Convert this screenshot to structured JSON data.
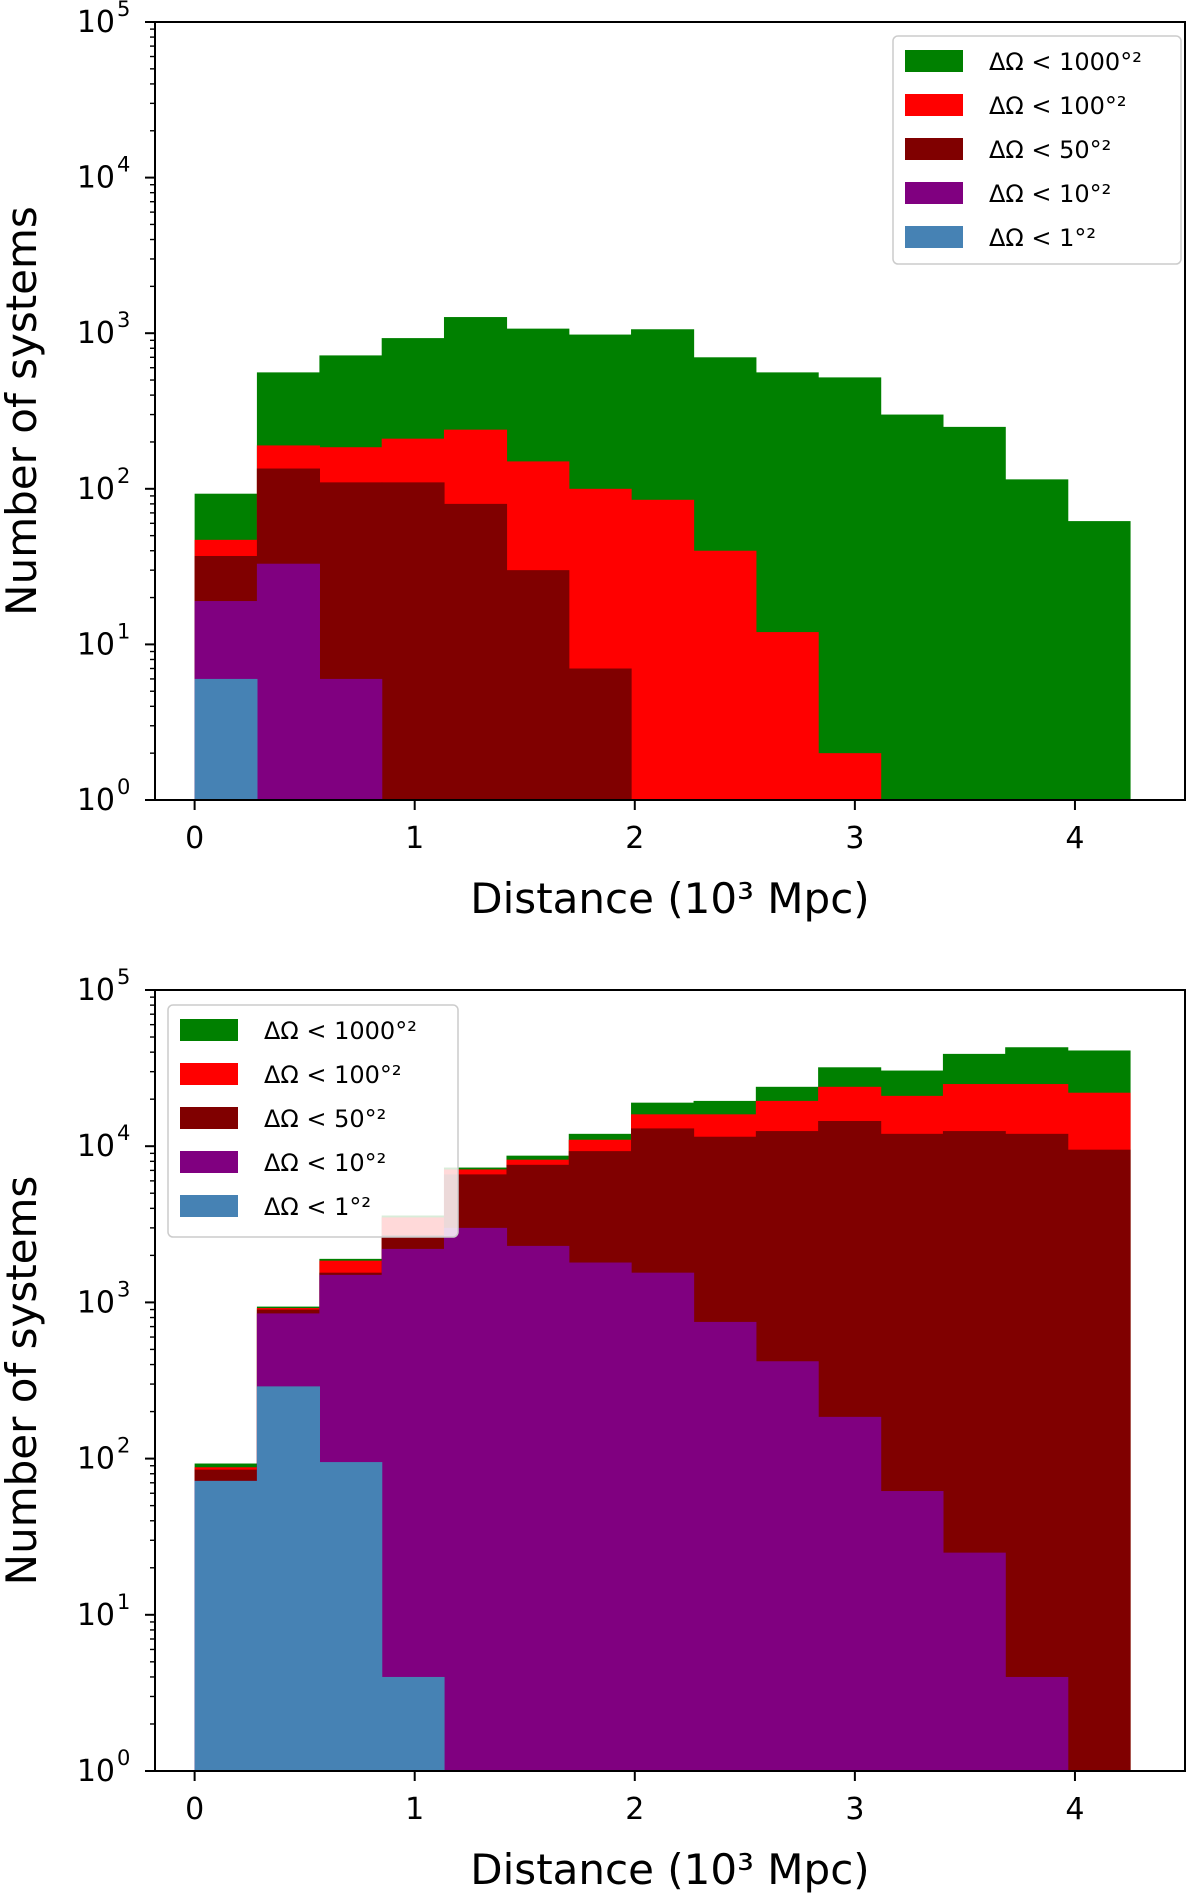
{
  "chart_data": [
    {
      "type": "bar",
      "bar_mode": "overlaid-step-histogram",
      "xlabel": "Distance (10³ Mpc)",
      "ylabel": "Number of systems",
      "yscale": "log",
      "xlim": [
        -0.18,
        4.5
      ],
      "ylim": [
        1,
        100000
      ],
      "xticks": [
        "0",
        "1",
        "2",
        "3",
        "4"
      ],
      "yticks": [
        {
          "base": "10",
          "exp": "0"
        },
        {
          "base": "10",
          "exp": "1"
        },
        {
          "base": "10",
          "exp": "2"
        },
        {
          "base": "10",
          "exp": "3"
        },
        {
          "base": "10",
          "exp": "4"
        },
        {
          "base": "10",
          "exp": "5"
        }
      ],
      "bin_edges": [
        0,
        0.283,
        0.567,
        0.85,
        1.133,
        1.417,
        1.7,
        1.983,
        2.267,
        2.55,
        2.833,
        3.117,
        3.4,
        3.683,
        3.967,
        4.25
      ],
      "legend_position": "upper right",
      "series": [
        {
          "name": "ΔΩ < 1000°²",
          "color": "#008000",
          "values": [
            93,
            560,
            720,
            930,
            1270,
            1070,
            980,
            1060,
            700,
            560,
            520,
            300,
            250,
            115,
            62
          ]
        },
        {
          "name": "ΔΩ < 100°²",
          "color": "#ff0000",
          "values": [
            47,
            190,
            185,
            210,
            240,
            150,
            100,
            85,
            40,
            12,
            2,
            0,
            0,
            0,
            0
          ]
        },
        {
          "name": "ΔΩ < 50°²",
          "color": "#800000",
          "values": [
            37,
            135,
            110,
            110,
            80,
            30,
            7,
            1,
            0,
            0,
            0,
            0,
            0,
            0,
            0
          ]
        },
        {
          "name": "ΔΩ < 10°²",
          "color": "#800080",
          "values": [
            19,
            33,
            6,
            1,
            0,
            0,
            0,
            0,
            0,
            0,
            0,
            0,
            0,
            0,
            0
          ]
        },
        {
          "name": "ΔΩ < 1°²",
          "color": "#4682b4",
          "values": [
            6,
            1,
            0,
            0,
            0,
            0,
            0,
            0,
            0,
            0,
            0,
            0,
            0,
            0,
            0
          ]
        }
      ]
    },
    {
      "type": "bar",
      "bar_mode": "overlaid-step-histogram",
      "xlabel": "Distance (10³ Mpc)",
      "ylabel": "Number of systems",
      "yscale": "log",
      "xlim": [
        -0.18,
        4.5
      ],
      "ylim": [
        1,
        100000
      ],
      "xticks": [
        "0",
        "1",
        "2",
        "3",
        "4"
      ],
      "yticks": [
        {
          "base": "10",
          "exp": "0"
        },
        {
          "base": "10",
          "exp": "1"
        },
        {
          "base": "10",
          "exp": "2"
        },
        {
          "base": "10",
          "exp": "3"
        },
        {
          "base": "10",
          "exp": "4"
        },
        {
          "base": "10",
          "exp": "5"
        }
      ],
      "bin_edges": [
        0,
        0.283,
        0.567,
        0.85,
        1.133,
        1.417,
        1.7,
        1.983,
        2.267,
        2.55,
        2.833,
        3.117,
        3.4,
        3.683,
        3.967,
        4.25
      ],
      "legend_position": "upper left",
      "series": [
        {
          "name": "ΔΩ < 1000°²",
          "color": "#008000",
          "values": [
            93,
            940,
            1900,
            3600,
            7300,
            8700,
            12000,
            19000,
            19500,
            24000,
            32000,
            30500,
            39000,
            43000,
            41000
          ]
        },
        {
          "name": "ΔΩ < 100°²",
          "color": "#ff0000",
          "values": [
            88,
            920,
            1850,
            3500,
            7100,
            8200,
            11000,
            16000,
            16000,
            19500,
            24000,
            21000,
            25000,
            25000,
            22000
          ]
        },
        {
          "name": "ΔΩ < 50°²",
          "color": "#800000",
          "values": [
            85,
            900,
            1550,
            2700,
            6600,
            7600,
            9300,
            13000,
            11500,
            12500,
            14500,
            12000,
            12500,
            12000,
            9500
          ]
        },
        {
          "name": "ΔΩ < 10°²",
          "color": "#800080",
          "values": [
            72,
            850,
            1500,
            2200,
            3000,
            2300,
            1800,
            1550,
            750,
            420,
            185,
            62,
            25,
            4,
            0
          ]
        },
        {
          "name": "ΔΩ < 1°²",
          "color": "#4682b4",
          "values": [
            72,
            290,
            95,
            4,
            0,
            0,
            0,
            0,
            0,
            0,
            0,
            0,
            0,
            0,
            0
          ]
        }
      ]
    }
  ]
}
